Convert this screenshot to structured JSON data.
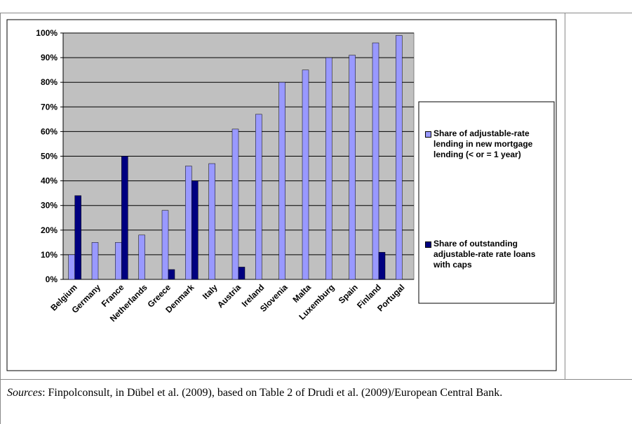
{
  "chart_data": {
    "type": "bar",
    "categories": [
      "Belgium",
      "Germany",
      "France",
      "Netherlands",
      "Greece",
      "Denmark",
      "Italy",
      "Austria",
      "Ireland",
      "Slovenia",
      "Malta",
      "Luxemburg",
      "Spain",
      "Finland",
      "Portugal"
    ],
    "series": [
      {
        "name": "Share of adjustable-rate lending in new mortgage lending (< or = 1 year)",
        "color": "#9999ff",
        "values": [
          10,
          15,
          15,
          18,
          28,
          46,
          47,
          61,
          67,
          80,
          85,
          90,
          91,
          96,
          99
        ]
      },
      {
        "name": "Share of outstanding adjustable-rate rate loans with caps",
        "color": "#000080",
        "values": [
          34,
          null,
          50,
          null,
          4,
          40,
          null,
          5,
          null,
          null,
          null,
          null,
          null,
          11,
          null
        ]
      }
    ],
    "ylim": [
      0,
      100
    ],
    "yticks": [
      {
        "value": 0,
        "label": "0%"
      },
      {
        "value": 10,
        "label": "10%"
      },
      {
        "value": 20,
        "label": "20%"
      },
      {
        "value": 30,
        "label": "30%"
      },
      {
        "value": 40,
        "label": "40%"
      },
      {
        "value": 50,
        "label": "50%"
      },
      {
        "value": 60,
        "label": "60%"
      },
      {
        "value": 70,
        "label": "70%"
      },
      {
        "value": 80,
        "label": "80%"
      },
      {
        "value": 90,
        "label": "90%"
      },
      {
        "value": 100,
        "label": "100%"
      }
    ],
    "grid": true,
    "legend": "right"
  },
  "source": {
    "label": "Sources",
    "text": ": Finpolconsult, in Dübel et al. (2009), based on Table 2 of Drudi et al. (2009)/European Central Bank."
  }
}
